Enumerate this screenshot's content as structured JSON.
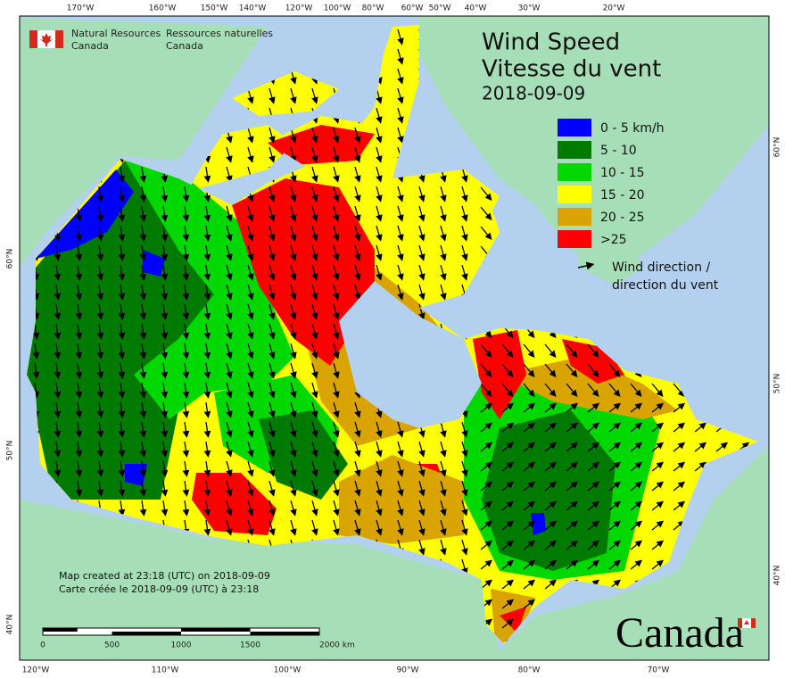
{
  "header": {
    "agency_en": [
      "Natural Resources",
      "Canada"
    ],
    "agency_fr": [
      "Ressources naturelles",
      "Canada"
    ]
  },
  "title": {
    "en": "Wind Speed",
    "fr": "Vitesse du vent",
    "date": "2018-09-09"
  },
  "legend": {
    "items": [
      {
        "label": "0 - 5 km/h",
        "color": "#0000ff"
      },
      {
        "label": "5 - 10",
        "color": "#007a00"
      },
      {
        "label": "10 - 15",
        "color": "#00d800"
      },
      {
        "label": "15 - 20",
        "color": "#ffff00"
      },
      {
        "label": "20 - 25",
        "color": "#d9a400"
      },
      {
        "label": ">25",
        "color": "#ff0000"
      }
    ],
    "arrow": [
      "Wind direction /",
      "direction du vent"
    ]
  },
  "graticule": {
    "top": [
      "170°W",
      "160°W",
      "150°W",
      "140°W",
      "120°W",
      "100°W",
      "80°W",
      "60°W",
      "50°W",
      "40°W",
      "30°W",
      "20°W"
    ],
    "bottom": [
      "120°W",
      "110°W",
      "100°W",
      "90°W",
      "80°W",
      "70°W"
    ],
    "left": [
      "60°N",
      "50°N",
      "40°N"
    ],
    "right": [
      "60°N",
      "50°N",
      "40°N"
    ]
  },
  "footnote": [
    "Map created at 23:18 (UTC) on 2018-09-09",
    "Carte créée le 2018-09-09 (UTC) à 23:18"
  ],
  "scale": {
    "labels": [
      "0",
      "500",
      "1000",
      "1500",
      "2000 km"
    ]
  },
  "wordmark": "Canada"
}
